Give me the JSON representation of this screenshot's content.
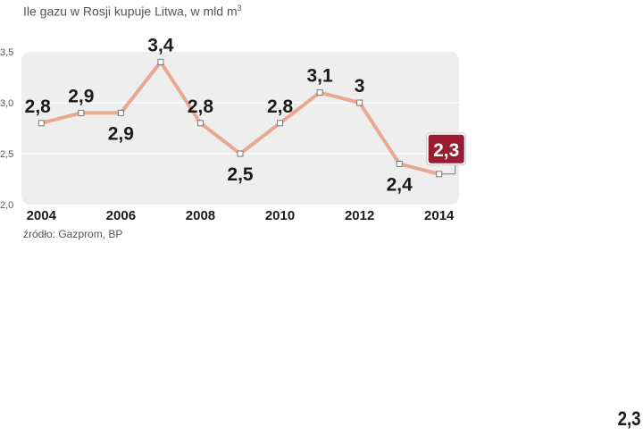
{
  "chart_data": {
    "type": "line",
    "title": "Ile gazu w Rosji kupuje Litwa, w mld m",
    "title_superscript": "3",
    "source": "źródło: Gazprom, BP",
    "x": [
      2004,
      2005,
      2006,
      2007,
      2008,
      2009,
      2010,
      2011,
      2012,
      2013,
      2014
    ],
    "series": [
      {
        "values": [
          2.8,
          2.9,
          2.9,
          3.4,
          2.8,
          2.5,
          2.8,
          3.1,
          3.0,
          2.4,
          2.3
        ],
        "data_labels": [
          "2,8",
          "2,9",
          "2,9",
          "3,4",
          "2,8",
          "2,5",
          "2,8",
          "3,1",
          "3",
          "2,4",
          "2,3"
        ]
      }
    ],
    "x_tick_labels": [
      "2004",
      "2006",
      "2008",
      "2010",
      "2012",
      "2014"
    ],
    "x_ticks": [
      2004,
      2006,
      2008,
      2010,
      2012,
      2014
    ],
    "y_tick_labels": [
      "3,5",
      "3,0",
      "2,5",
      "2,0"
    ],
    "y_ticks": [
      3.5,
      3.0,
      2.5,
      2.0
    ],
    "ylim": [
      2.0,
      3.5
    ],
    "xlim": [
      2003.5,
      2014.5
    ],
    "grid": "horizontal",
    "highlight_index": 10,
    "colors": {
      "line": "#e8a990",
      "plot_background": "#eeeeee",
      "grid": "#ffffff",
      "highlight_box": "#9b1b30",
      "marker_fill": "#ffffff",
      "marker_stroke": "#777777"
    }
  },
  "corner_label": "2,3"
}
